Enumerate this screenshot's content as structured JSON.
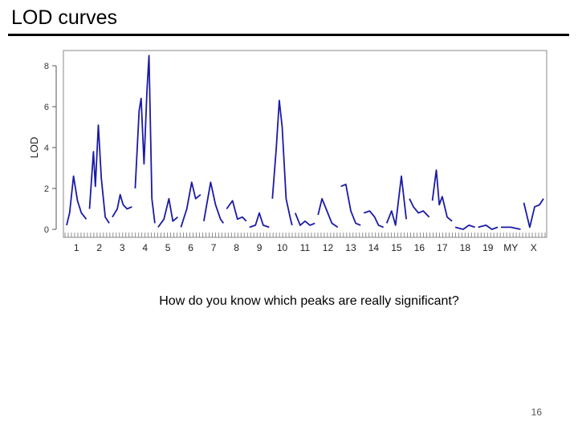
{
  "slide": {
    "title": "LOD curves",
    "caption": "How do you know which peaks are really significant?",
    "page_number": "16"
  },
  "colors": {
    "curve": "#1a1aa6",
    "axis": "#555555",
    "frame": "#888888"
  },
  "chart_data": {
    "type": "line",
    "title": "",
    "xlabel": "",
    "ylabel": "LOD",
    "ylim": [
      0,
      8.8
    ],
    "yticks": [
      0,
      2,
      4,
      6,
      8
    ],
    "grid": false,
    "legend": "none",
    "chromosomes": [
      "1",
      "2",
      "3",
      "4",
      "5",
      "6",
      "7",
      "8",
      "9",
      "10",
      "11",
      "12",
      "13",
      "14",
      "15",
      "16",
      "17",
      "18",
      "19",
      "MY",
      "X"
    ],
    "segments": [
      {
        "chrom": "1",
        "points": [
          [
            0,
            0.2
          ],
          [
            0.15,
            0.8
          ],
          [
            0.35,
            2.6
          ],
          [
            0.55,
            1.4
          ],
          [
            0.75,
            0.8
          ],
          [
            1,
            0.5
          ]
        ]
      },
      {
        "chrom": "2",
        "points": [
          [
            0,
            1.0
          ],
          [
            0.2,
            3.8
          ],
          [
            0.3,
            2.1
          ],
          [
            0.45,
            5.1
          ],
          [
            0.6,
            2.5
          ],
          [
            0.8,
            0.6
          ],
          [
            1,
            0.3
          ]
        ]
      },
      {
        "chrom": "3",
        "points": [
          [
            0,
            0.6
          ],
          [
            0.25,
            1.0
          ],
          [
            0.4,
            1.7
          ],
          [
            0.55,
            1.2
          ],
          [
            0.75,
            1.0
          ],
          [
            1,
            1.1
          ]
        ]
      },
      {
        "chrom": "4",
        "points": [
          [
            0,
            2.0
          ],
          [
            0.2,
            5.8
          ],
          [
            0.3,
            6.4
          ],
          [
            0.45,
            3.2
          ],
          [
            0.6,
            6.8
          ],
          [
            0.7,
            8.5
          ],
          [
            0.85,
            1.5
          ],
          [
            1,
            0.3
          ]
        ]
      },
      {
        "chrom": "5",
        "points": [
          [
            0,
            0.1
          ],
          [
            0.3,
            0.5
          ],
          [
            0.55,
            1.5
          ],
          [
            0.75,
            0.4
          ],
          [
            1,
            0.6
          ]
        ]
      },
      {
        "chrom": "6",
        "points": [
          [
            0,
            0.1
          ],
          [
            0.3,
            1.0
          ],
          [
            0.55,
            2.3
          ],
          [
            0.75,
            1.5
          ],
          [
            1,
            1.7
          ]
        ]
      },
      {
        "chrom": "7",
        "points": [
          [
            0,
            0.4
          ],
          [
            0.35,
            2.3
          ],
          [
            0.6,
            1.2
          ],
          [
            0.85,
            0.5
          ],
          [
            1,
            0.3
          ]
        ]
      },
      {
        "chrom": "8",
        "points": [
          [
            0,
            1.0
          ],
          [
            0.3,
            1.4
          ],
          [
            0.55,
            0.5
          ],
          [
            0.8,
            0.6
          ],
          [
            1,
            0.4
          ]
        ]
      },
      {
        "chrom": "9",
        "points": [
          [
            0,
            0.1
          ],
          [
            0.3,
            0.2
          ],
          [
            0.5,
            0.8
          ],
          [
            0.7,
            0.2
          ],
          [
            1,
            0.1
          ]
        ]
      },
      {
        "chrom": "10",
        "points": [
          [
            0,
            1.5
          ],
          [
            0.2,
            4.0
          ],
          [
            0.35,
            6.3
          ],
          [
            0.5,
            5.0
          ],
          [
            0.7,
            1.5
          ],
          [
            0.9,
            0.6
          ],
          [
            1,
            0.2
          ]
        ]
      },
      {
        "chrom": "11",
        "points": [
          [
            0,
            0.8
          ],
          [
            0.25,
            0.2
          ],
          [
            0.5,
            0.4
          ],
          [
            0.75,
            0.2
          ],
          [
            1,
            0.3
          ]
        ]
      },
      {
        "chrom": "12",
        "points": [
          [
            0,
            0.7
          ],
          [
            0.2,
            1.5
          ],
          [
            0.45,
            0.9
          ],
          [
            0.7,
            0.3
          ],
          [
            1,
            0.1
          ]
        ]
      },
      {
        "chrom": "13",
        "points": [
          [
            0,
            2.1
          ],
          [
            0.25,
            2.2
          ],
          [
            0.5,
            0.9
          ],
          [
            0.75,
            0.3
          ],
          [
            1,
            0.2
          ]
        ]
      },
      {
        "chrom": "14",
        "points": [
          [
            0,
            0.8
          ],
          [
            0.3,
            0.9
          ],
          [
            0.55,
            0.6
          ],
          [
            0.75,
            0.2
          ],
          [
            1,
            0.1
          ]
        ]
      },
      {
        "chrom": "15",
        "points": [
          [
            0,
            0.3
          ],
          [
            0.25,
            0.9
          ],
          [
            0.45,
            0.2
          ],
          [
            0.75,
            2.6
          ],
          [
            1,
            0.5
          ]
        ]
      },
      {
        "chrom": "16",
        "points": [
          [
            0,
            1.5
          ],
          [
            0.2,
            1.1
          ],
          [
            0.45,
            0.8
          ],
          [
            0.7,
            0.9
          ],
          [
            1,
            0.6
          ]
        ]
      },
      {
        "chrom": "17",
        "points": [
          [
            0,
            1.4
          ],
          [
            0.2,
            2.9
          ],
          [
            0.35,
            1.2
          ],
          [
            0.5,
            1.6
          ],
          [
            0.75,
            0.6
          ],
          [
            1,
            0.4
          ]
        ]
      },
      {
        "chrom": "18",
        "points": [
          [
            0,
            0.1
          ],
          [
            0.4,
            0.0
          ],
          [
            0.7,
            0.2
          ],
          [
            1,
            0.1
          ]
        ]
      },
      {
        "chrom": "19",
        "points": [
          [
            0,
            0.1
          ],
          [
            0.4,
            0.2
          ],
          [
            0.7,
            0.0
          ],
          [
            1,
            0.1
          ]
        ]
      },
      {
        "chrom": "MY",
        "points": [
          [
            0,
            0.1
          ],
          [
            0.5,
            0.1
          ],
          [
            1,
            0.0
          ]
        ]
      },
      {
        "chrom": "X",
        "points": [
          [
            0,
            1.3
          ],
          [
            0.3,
            0.1
          ],
          [
            0.55,
            1.1
          ],
          [
            0.8,
            1.2
          ],
          [
            1,
            1.5
          ]
        ]
      }
    ]
  }
}
